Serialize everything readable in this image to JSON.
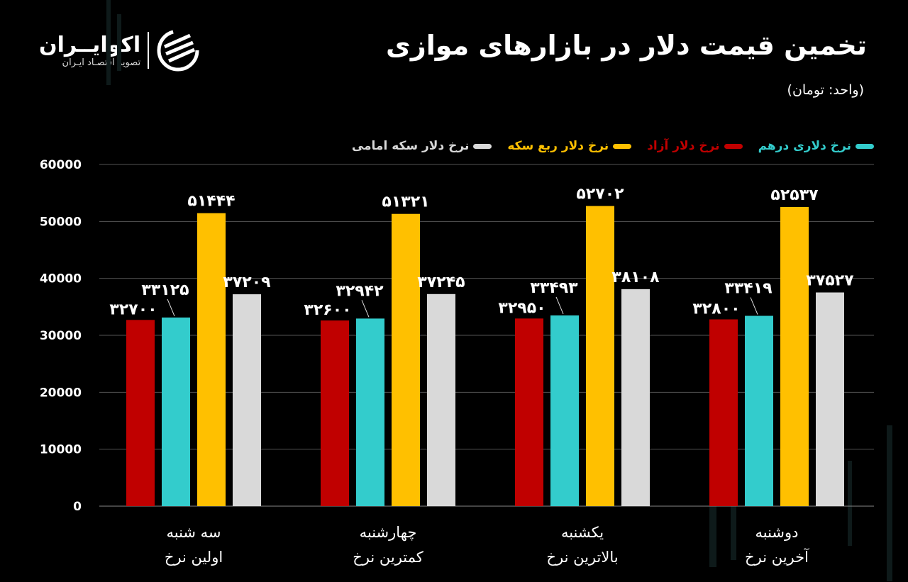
{
  "header": {
    "title": "تخمین قیمت دلار در بازارهای موازی",
    "unit": "(واحد: تومان)"
  },
  "logo": {
    "name": "اکوایــران",
    "tagline": "تصویر اقتصـاد ایـران"
  },
  "chart_data": {
    "type": "bar",
    "title": "تخمین قیمت دلار در بازارهای موازی",
    "subtitle": "(واحد: تومان)",
    "ylim": [
      0,
      60000
    ],
    "yticks": [
      "0",
      "10000",
      "20000",
      "30000",
      "40000",
      "50000",
      "60000"
    ],
    "grid": true,
    "legend_position": "top",
    "categories": [
      [
        "سه شنبه",
        "اولین نرخ"
      ],
      [
        "چهارشنبه",
        "کمترین نرخ"
      ],
      [
        "یکشنبه",
        "بالاترین نرخ"
      ],
      [
        "دوشنبه",
        "آخرین نرخ"
      ]
    ],
    "series": [
      {
        "name": "نرخ دلار آزاد",
        "color": "#c00000",
        "values": [
          32700,
          32600,
          32950,
          32800
        ],
        "labels": [
          "۳۲۷۰۰",
          "۳۲۶۰۰",
          "۳۲۹۵۰",
          "۳۲۸۰۰"
        ]
      },
      {
        "name": "نرخ دلاری درهم",
        "color": "#33cccc",
        "values": [
          33125,
          32942,
          33493,
          33419
        ],
        "labels": [
          "۳۳۱۲۵",
          "۳۲۹۴۲",
          "۳۳۴۹۳",
          "۳۳۴۱۹"
        ]
      },
      {
        "name": "نرخ دلار ربع سکه",
        "color": "#ffc000",
        "values": [
          51444,
          51321,
          52702,
          52537
        ],
        "labels": [
          "۵۱۴۴۴",
          "۵۱۳۲۱",
          "۵۲۷۰۲",
          "۵۲۵۳۷"
        ]
      },
      {
        "name": "نرخ دلار سکه امامی",
        "color": "#d9d9d9",
        "values": [
          37209,
          37245,
          38108,
          37527
        ],
        "labels": [
          "۳۷۲۰۹",
          "۳۷۲۴۵",
          "۳۸۱۰۸",
          "۳۷۵۲۷"
        ]
      }
    ],
    "legend_order": [
      1,
      0,
      2,
      3
    ]
  }
}
